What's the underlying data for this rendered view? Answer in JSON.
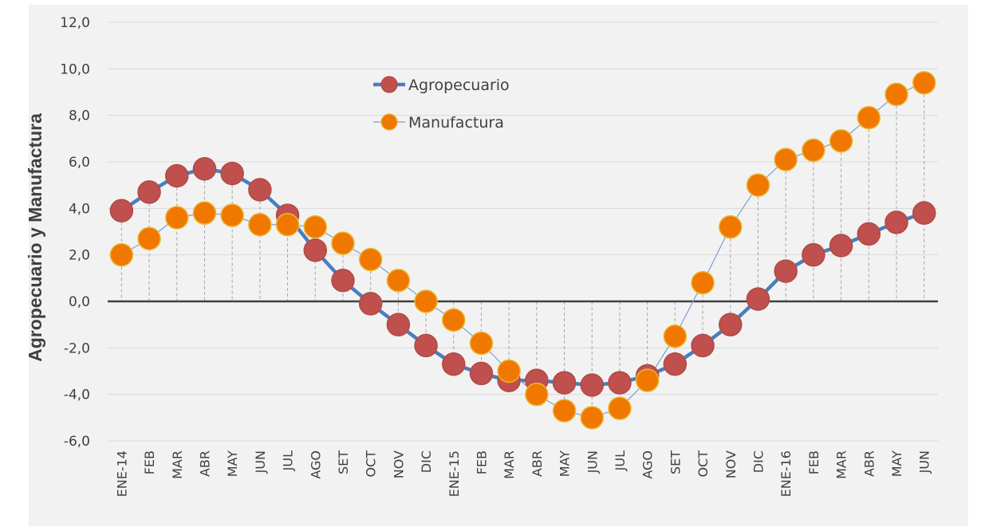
{
  "chart_data": {
    "type": "line",
    "ylabel": "Agropecuario y Manufactura",
    "ylim": [
      -6,
      12
    ],
    "y_ticks": [
      "12,0",
      "10,0",
      "8,0",
      "6,0",
      "4,0",
      "2,0",
      "0,0",
      "-2,0",
      "-4,0",
      "-6,0"
    ],
    "y_tick_values": [
      12,
      10,
      8,
      6,
      4,
      2,
      0,
      -2,
      -4,
      -6
    ],
    "grid": true,
    "legend_position": "top-center",
    "categories": [
      "ENE-14",
      "FEB",
      "MAR",
      "ABR",
      "MAY",
      "JUN",
      "JUL",
      "AGO",
      "SET",
      "OCT",
      "NOV",
      "DIC",
      "ENE-15",
      "FEB",
      "MAR",
      "ABR",
      "MAY",
      "JUN",
      "JUL",
      "AGO",
      "SET",
      "OCT",
      "NOV",
      "DIC",
      "ENE-16",
      "FEB",
      "MAR",
      "ABR",
      "MAY",
      "JUN"
    ],
    "series": [
      {
        "name": "Agropecuario",
        "line_color": "#4a7ebb",
        "marker_color": "#c0504d",
        "values": [
          3.9,
          4.7,
          5.4,
          5.7,
          5.5,
          4.8,
          3.7,
          2.2,
          0.9,
          -0.1,
          -1.0,
          -1.9,
          -2.7,
          -3.1,
          -3.4,
          -3.4,
          -3.5,
          -3.6,
          -3.5,
          -3.2,
          -2.7,
          -1.9,
          -1.0,
          0.1,
          1.3,
          2.0,
          2.4,
          2.9,
          3.4,
          3.8
        ]
      },
      {
        "name": "Manufactura",
        "line_color": "#7a9fd0",
        "marker_color": "#f07800",
        "values": [
          2.0,
          2.7,
          3.6,
          3.8,
          3.7,
          3.3,
          3.3,
          3.2,
          2.5,
          1.8,
          0.9,
          0.0,
          -0.8,
          -1.8,
          -3.0,
          -4.0,
          -4.7,
          -5.0,
          -4.6,
          -3.4,
          -1.5,
          0.8,
          3.2,
          5.0,
          6.1,
          6.5,
          6.9,
          7.9,
          8.9,
          9.4
        ]
      }
    ]
  }
}
